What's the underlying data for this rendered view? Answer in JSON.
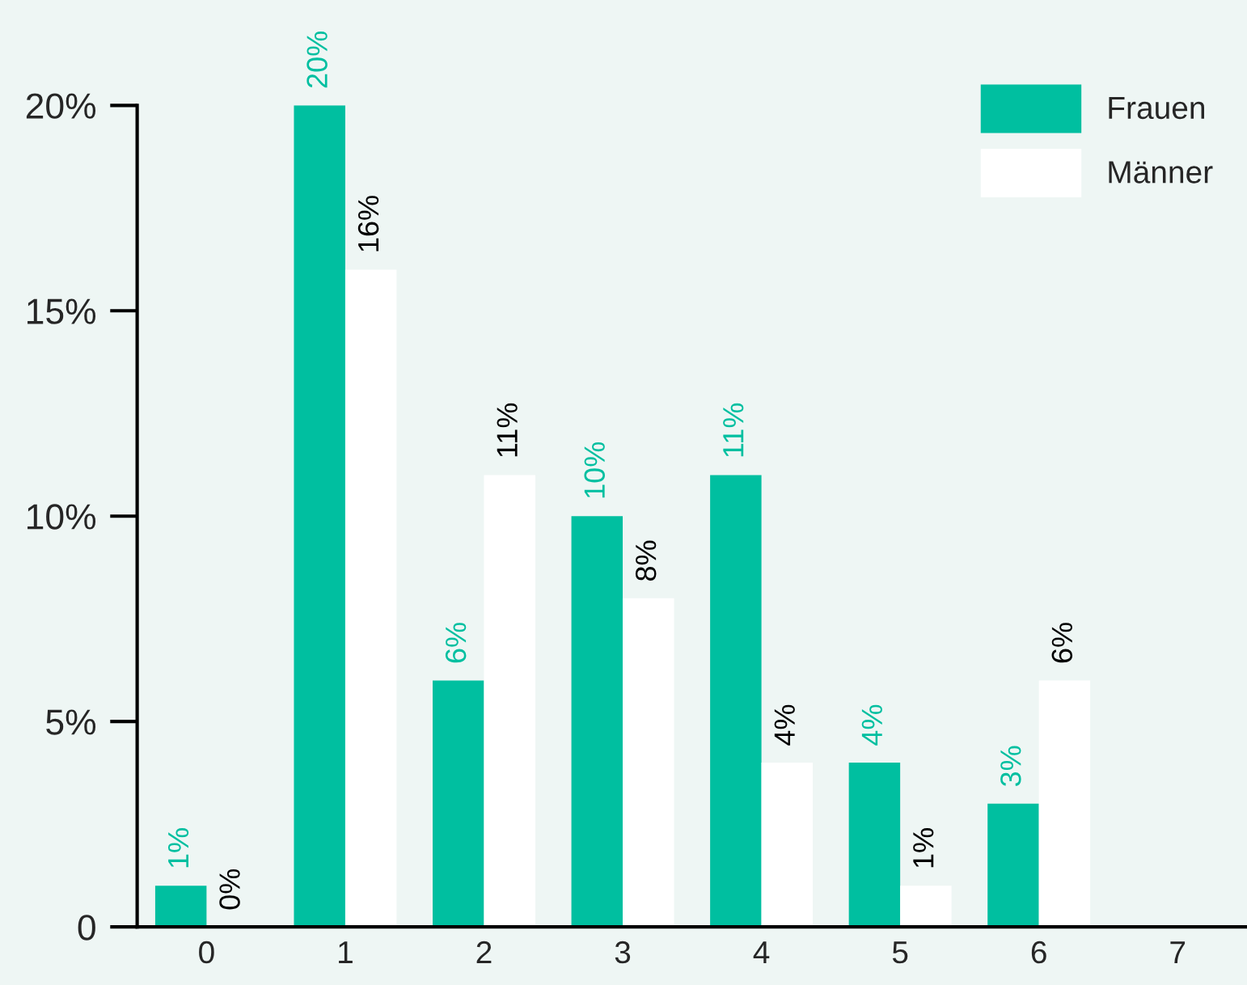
{
  "chart_data": {
    "type": "bar",
    "categories": [
      "0",
      "1",
      "2",
      "3",
      "4",
      "5",
      "6",
      "7"
    ],
    "series": [
      {
        "name": "Frauen",
        "color": "#00bfa0",
        "values": [
          1,
          20,
          6,
          10,
          11,
          4,
          3,
          null
        ],
        "value_labels": [
          "1%",
          "20%",
          "6%",
          "10%",
          "11%",
          "4%",
          "3%",
          null
        ]
      },
      {
        "name": "Männer",
        "color": "#ffffff",
        "values": [
          0,
          16,
          11,
          8,
          4,
          1,
          6,
          null
        ],
        "value_labels": [
          "0%",
          "16%",
          "11%",
          "8%",
          "4%",
          "1%",
          "6%",
          null
        ]
      }
    ],
    "ylim": [
      0,
      20
    ],
    "yticks": [
      0,
      {
        "value": 5,
        "label": "5%"
      },
      {
        "value": 10,
        "label": "10%"
      },
      {
        "value": 15,
        "label": "15%"
      },
      {
        "value": 20,
        "label": "20%"
      }
    ],
    "legend": "top right",
    "grid": false
  }
}
